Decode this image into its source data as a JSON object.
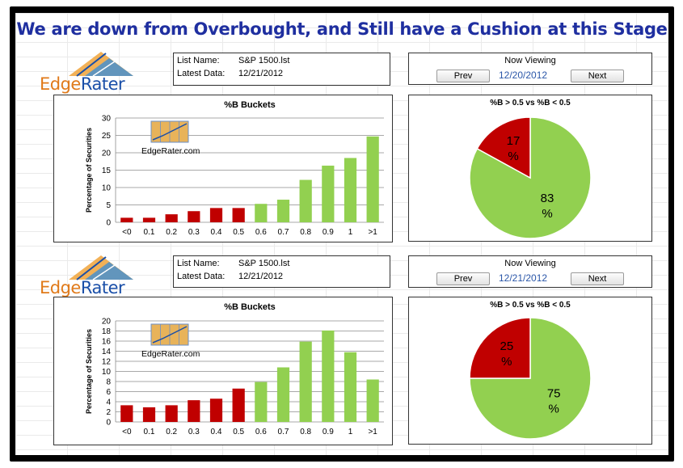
{
  "headline": "We are down from Overbought, and Still have a Cushion at this Stage",
  "brand": {
    "name_pre": "Edge",
    "name_post": "Rater",
    "watermark": "EdgeRater.com"
  },
  "colors": {
    "red": "#c00000",
    "green": "#92d050",
    "title_blue": "#1f2fa0",
    "date_blue": "#2a56a8"
  },
  "panels": [
    {
      "info": {
        "list_label": "List Name:",
        "list_value": "S&P 1500.lst",
        "data_label": "Latest Data:",
        "data_value": "12/21/2012"
      },
      "nav": {
        "title": "Now Viewing",
        "prev": "Prev",
        "next": "Next",
        "date": "12/20/2012"
      },
      "bar_title": "%B Buckets",
      "pie_title": "%B > 0.5 vs %B < 0.5",
      "pie_red_label": "17\n%",
      "pie_green_label": "83\n%"
    },
    {
      "info": {
        "list_label": "List Name:",
        "list_value": "S&P 1500.lst",
        "data_label": "Latest Data:",
        "data_value": "12/21/2012"
      },
      "nav": {
        "title": "Now Viewing",
        "prev": "Prev",
        "next": "Next",
        "date": "12/21/2012"
      },
      "bar_title": "%B Buckets",
      "pie_title": "%B > 0.5 vs %B < 0.5",
      "pie_red_label": "25\n%",
      "pie_green_label": "75\n%"
    }
  ],
  "chart_data": [
    {
      "type": "bar",
      "title": "%B Buckets",
      "ylabel": "Percentage of Securities",
      "categories": [
        "<0",
        "0.1",
        "0.2",
        "0.3",
        "0.4",
        "0.5",
        "0.6",
        "0.7",
        "0.8",
        "0.9",
        "1",
        ">1"
      ],
      "values": [
        1.3,
        1.3,
        2.3,
        3.2,
        4.1,
        4.1,
        5.3,
        6.5,
        12.2,
        16.3,
        18.5,
        24.7
      ],
      "bar_colors": [
        "red",
        "red",
        "red",
        "red",
        "red",
        "red",
        "green",
        "green",
        "green",
        "green",
        "green",
        "green"
      ],
      "ylim": [
        0,
        30
      ],
      "yticks": [
        0,
        5,
        10,
        15,
        20,
        25,
        30
      ]
    },
    {
      "type": "pie",
      "title": "%B > 0.5 vs %B < 0.5",
      "slices": [
        {
          "label": "17 %",
          "value": 17,
          "color": "red"
        },
        {
          "label": "83 %",
          "value": 83,
          "color": "green"
        }
      ]
    },
    {
      "type": "bar",
      "title": "%B Buckets",
      "ylabel": "Percentage of Securities",
      "categories": [
        "<0",
        "0.1",
        "0.2",
        "0.3",
        "0.4",
        "0.5",
        "0.6",
        "0.7",
        "0.8",
        "0.9",
        "1",
        ">1"
      ],
      "values": [
        3.3,
        2.9,
        3.3,
        4.3,
        4.6,
        6.6,
        7.9,
        10.8,
        15.9,
        18.1,
        13.8,
        8.4
      ],
      "bar_colors": [
        "red",
        "red",
        "red",
        "red",
        "red",
        "red",
        "green",
        "green",
        "green",
        "green",
        "green",
        "green"
      ],
      "ylim": [
        0,
        20
      ],
      "yticks": [
        0,
        2,
        4,
        6,
        8,
        10,
        12,
        14,
        16,
        18,
        20
      ]
    },
    {
      "type": "pie",
      "title": "%B > 0.5 vs %B < 0.5",
      "slices": [
        {
          "label": "25 %",
          "value": 25,
          "color": "red"
        },
        {
          "label": "75 %",
          "value": 75,
          "color": "green"
        }
      ]
    }
  ]
}
